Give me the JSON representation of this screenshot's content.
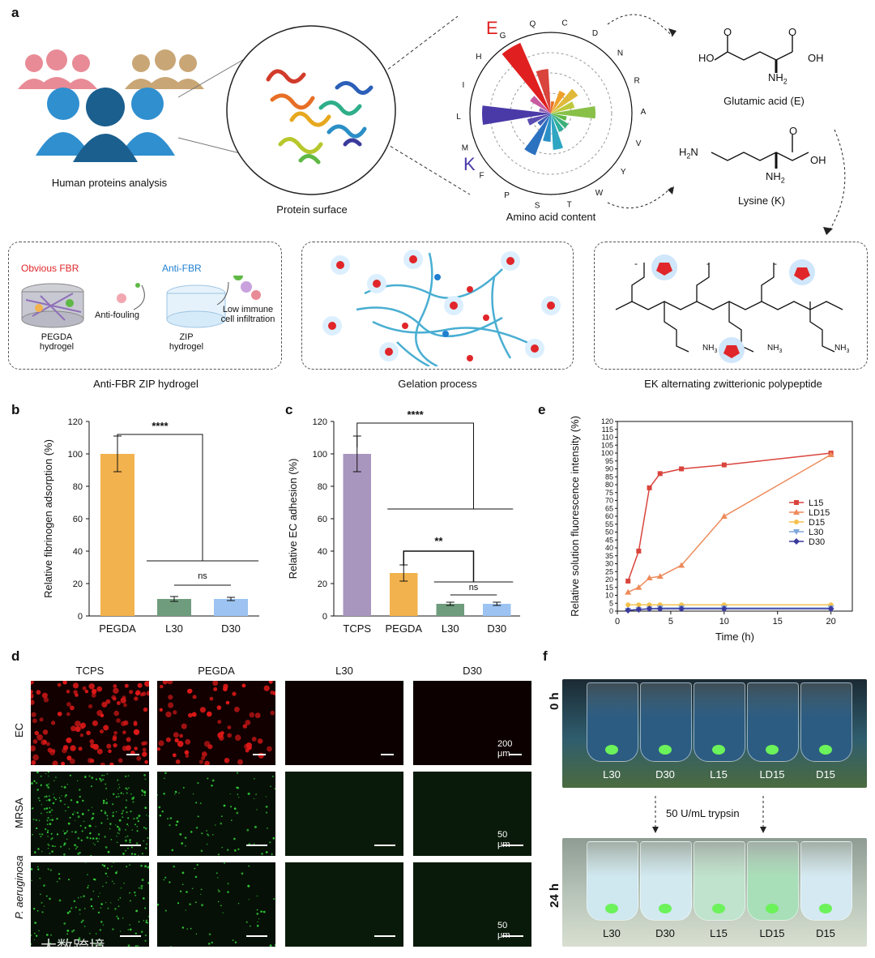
{
  "panel_letters": {
    "a": "a",
    "b": "b",
    "c": "c",
    "d": "d",
    "e": "e",
    "f": "f"
  },
  "panel_a": {
    "human_caption": "Human proteins analysis",
    "protein_caption": "Protein surface",
    "amino_caption": "Amino acid content",
    "polar_letters": [
      "Q",
      "C",
      "D",
      "N",
      "R",
      "A",
      "V",
      "Y",
      "W",
      "T",
      "S",
      "P",
      "F",
      "M",
      "L",
      "I",
      "H",
      "G"
    ],
    "big_E": "E",
    "big_K": "K",
    "glu": {
      "ho": "HO",
      "oh": "OH",
      "o1": "O",
      "o2": "O",
      "nh2": "NH",
      "sub": "2",
      "name": "Glutamic acid (E)"
    },
    "lys": {
      "h2n": "H",
      "n": "N",
      "sub": "2",
      "oh": "OH",
      "o": "O",
      "nh2": "NH",
      "sub2": "2",
      "name": "Lysine (K)"
    },
    "box1": {
      "obvious": "Obvious FBR",
      "anti": "Anti-FBR",
      "antifouling": "Anti-fouling",
      "low1": "Low immune",
      "low2": "cell infiltration",
      "pegda1": "PEGDA",
      "pegda2": "hydrogel",
      "zip1": "ZIP",
      "zip2": "hydrogel",
      "caption": "Anti-FBR ZIP hydrogel"
    },
    "box2": {
      "caption": "Gelation process"
    },
    "box3": {
      "caption": "EK alternating zwitterionic polypeptide",
      "nh3": "NH",
      "three": "3",
      "plus": "+",
      "minus": "-"
    },
    "colors": {
      "E": "#e02020",
      "K": "#4a3aa8",
      "blue": "#1f7fd1",
      "red": "#e0262a",
      "orange": "#f0b04c",
      "purple": "#a996bf",
      "green": "#6a9b7a",
      "lightblue": "#9cc4f2"
    }
  },
  "chart_b": {
    "ylabel": "Relative fibrinogen adsorption (%)",
    "yticks": [
      "0",
      "20",
      "40",
      "60",
      "80",
      "100",
      "120"
    ],
    "categories": [
      "PEGDA",
      "L30",
      "D30"
    ],
    "sig_top": "****",
    "sig_ns": "ns"
  },
  "chart_c": {
    "ylabel": "Relative EC adhesion (%)",
    "yticks": [
      "0",
      "20",
      "40",
      "60",
      "80",
      "100",
      "120"
    ],
    "categories": [
      "TCPS",
      "PEGDA",
      "L30",
      "D30"
    ],
    "sig_top": "****",
    "sig_mid": "**",
    "sig_ns": "ns"
  },
  "chart_e": {
    "ylabel": "Relative solution fluorescence intensity (%)",
    "xlabel": "Time (h)",
    "xticks": [
      "0",
      "5",
      "10",
      "15",
      "20"
    ],
    "yticks": [
      "0",
      "5",
      "10",
      "15",
      "20",
      "25",
      "30",
      "35",
      "40",
      "45",
      "50",
      "55",
      "60",
      "65",
      "70",
      "75",
      "80",
      "85",
      "90",
      "95",
      "100",
      "105",
      "110",
      "115",
      "120"
    ],
    "legend": [
      "L15",
      "LD15",
      "D15",
      "L30",
      "D30"
    ]
  },
  "chart_data": [
    {
      "type": "bar",
      "title": "",
      "ylabel": "Relative fibrinogen adsorption (%)",
      "categories": [
        "PEGDA",
        "L30",
        "D30"
      ],
      "values": [
        100,
        10.5,
        10.5
      ],
      "errors": [
        11,
        1.5,
        1
      ],
      "colors": [
        "#f2b24d",
        "#6f9c7d",
        "#9cc3f1"
      ],
      "ylim": [
        0,
        120
      ]
    },
    {
      "type": "bar",
      "title": "",
      "ylabel": "Relative EC adhesion (%)",
      "categories": [
        "TCPS",
        "PEGDA",
        "L30",
        "D30"
      ],
      "values": [
        100,
        26.5,
        7.5,
        7.5
      ],
      "errors": [
        11,
        5,
        1,
        1
      ],
      "colors": [
        "#a996bf",
        "#f2b24d",
        "#6f9c7d",
        "#9cc3f1"
      ],
      "ylim": [
        0,
        120
      ]
    },
    {
      "type": "line",
      "title": "",
      "xlabel": "Time (h)",
      "ylabel": "Relative solution fluorescence intensity (%)",
      "xlim": [
        0,
        22
      ],
      "ylim": [
        0,
        120
      ],
      "series": [
        {
          "name": "L15",
          "color": "#d9443c",
          "marker": "square",
          "x": [
            1,
            2,
            3,
            4,
            6,
            10,
            20
          ],
          "y": [
            19,
            38,
            78,
            87,
            90,
            92.5,
            100
          ]
        },
        {
          "name": "LD15",
          "color": "#ee8a5a",
          "marker": "triangle",
          "x": [
            1,
            2,
            3,
            4,
            6,
            10,
            20
          ],
          "y": [
            12,
            15,
            21,
            22,
            29,
            60,
            99
          ]
        },
        {
          "name": "D15",
          "color": "#f3c14e",
          "marker": "circle",
          "x": [
            1,
            2,
            3,
            4,
            6,
            10,
            20
          ],
          "y": [
            4,
            4,
            4,
            4,
            4,
            4,
            4
          ]
        },
        {
          "name": "L30",
          "color": "#7fa7dc",
          "marker": "triangle-down",
          "x": [
            1,
            2,
            3,
            4,
            6,
            10,
            20
          ],
          "y": [
            0.5,
            1,
            1.5,
            2,
            2,
            2,
            2
          ]
        },
        {
          "name": "D30",
          "color": "#3a3a9e",
          "marker": "diamond",
          "x": [
            1,
            2,
            3,
            4,
            6,
            10,
            20
          ],
          "y": [
            0.5,
            1,
            1.5,
            1.5,
            1.5,
            1.5,
            1.5
          ]
        }
      ]
    }
  ],
  "panel_d": {
    "cols": [
      "TCPS",
      "PEGDA",
      "L30",
      "D30"
    ],
    "rows": [
      "EC",
      "MRSA",
      "P. aeruginosa"
    ],
    "scale1": "200 μm",
    "scale2": "50 μm",
    "scale3": "50 μm"
  },
  "panel_f": {
    "t0": "0 h",
    "t24": "24 h",
    "trypsin": "50 U/mL trypsin",
    "vials": [
      "L30",
      "D30",
      "L15",
      "LD15",
      "D15"
    ]
  },
  "watermark": "大数跨境"
}
